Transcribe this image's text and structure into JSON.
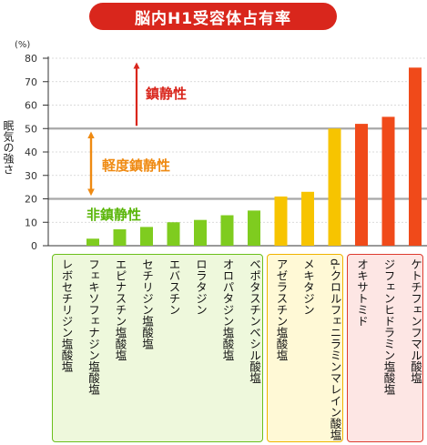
{
  "title": "脳内H1受容体占有率",
  "chart_data": {
    "type": "bar",
    "unit_label": "(%)",
    "ylabel": "眠気の強さ",
    "ylim": [
      0,
      80
    ],
    "yticks": [
      0,
      10,
      20,
      30,
      40,
      50,
      60,
      70,
      80
    ],
    "threshold_lines": [
      20,
      50
    ],
    "categories": [
      "レボセチリジン塩酸塩",
      "フェキソフェナジン塩酸塩",
      "エピナスチン塩酸塩",
      "セチリジン塩酸塩",
      "エバスチン",
      "ロラタジン",
      "オロパタジン塩酸塩",
      "ベポタスチンベシル酸塩",
      "アゼラスチン塩酸塩",
      "メキタジン",
      "d-クロルフェニラミンマレイン酸塩",
      "オキサトミド",
      "ジフェンヒドラミン塩酸塩",
      "ケトチフェンフマル酸塩"
    ],
    "values": [
      0,
      3,
      7,
      8,
      10,
      11,
      13,
      15,
      21,
      23,
      50,
      52,
      55,
      76
    ],
    "zones": [
      {
        "label": "鎮静性",
        "color": "#d9261c"
      },
      {
        "label": "軽度鎮静性",
        "color": "#ef8a12"
      },
      {
        "label": "非鎮静性",
        "color": "#5bb60a"
      }
    ],
    "bar_colors": [
      "#7fcc1f",
      "#7fcc1f",
      "#7fcc1f",
      "#7fcc1f",
      "#7fcc1f",
      "#7fcc1f",
      "#7fcc1f",
      "#7fcc1f",
      "#f7c400",
      "#f7c400",
      "#f7c400",
      "#f04a1a",
      "#f04a1a",
      "#f04a1a"
    ]
  }
}
